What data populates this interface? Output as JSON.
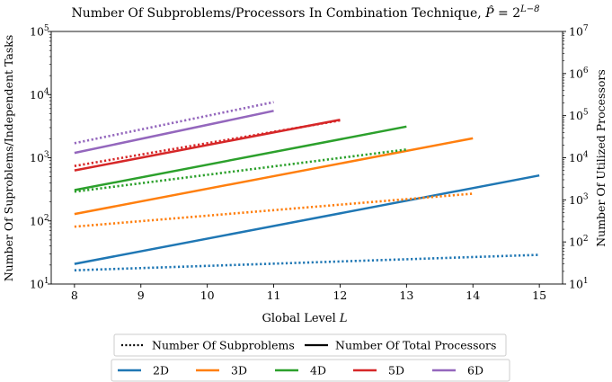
{
  "chart_data": {
    "type": "line",
    "title": "Number Of Subproblems/Processors In Combination Technique, P̂ = 2^{L−8}",
    "title_main": "Number Of Subproblems/Processors In Combination Technique, ",
    "title_sym": "P̂",
    "title_eq": " = 2",
    "title_exp": "L−8",
    "xlabel": "Global Level",
    "xlabel_var": "L",
    "ylabel_left": "Number Of Suproblems/Independent Tasks",
    "ylabel_right": "Number Of Utilized Processors",
    "xlim": [
      7.65,
      15.35
    ],
    "xticks": [
      "8",
      "9",
      "10",
      "11",
      "12",
      "13",
      "14",
      "15"
    ],
    "ylim_left": [
      10,
      100000
    ],
    "yscale_left": "log",
    "yticks_left": [
      {
        "base": "10",
        "exp": "1"
      },
      {
        "base": "10",
        "exp": "2"
      },
      {
        "base": "10",
        "exp": "3"
      },
      {
        "base": "10",
        "exp": "4"
      },
      {
        "base": "10",
        "exp": "5"
      }
    ],
    "ylim_right": [
      10,
      10000000
    ],
    "yscale_right": "log",
    "yticks_right": [
      {
        "base": "10",
        "exp": "1"
      },
      {
        "base": "10",
        "exp": "2"
      },
      {
        "base": "10",
        "exp": "3"
      },
      {
        "base": "10",
        "exp": "4"
      },
      {
        "base": "10",
        "exp": "5"
      },
      {
        "base": "10",
        "exp": "6"
      },
      {
        "base": "10",
        "exp": "7"
      }
    ],
    "grid": false,
    "legend_style": {
      "location": "bottom",
      "items": [
        {
          "label": "Number Of Subproblems",
          "dash": "dotted"
        },
        {
          "label": "Number Of Total Processors",
          "dash": "solid"
        }
      ]
    },
    "legend_dims": {
      "location": "bottom",
      "items": [
        {
          "label": "2D",
          "color": "#1f77b4"
        },
        {
          "label": "3D",
          "color": "#ff7f0e"
        },
        {
          "label": "4D",
          "color": "#2ca02c"
        },
        {
          "label": "5D",
          "color": "#d62728"
        },
        {
          "label": "6D",
          "color": "#9467bd"
        }
      ]
    },
    "series": [
      {
        "dim": "2D",
        "color": "#1f77b4",
        "kind": "subproblems",
        "axis": "left",
        "x": [
          8,
          15
        ],
        "y": [
          16.5,
          29
        ]
      },
      {
        "dim": "2D",
        "color": "#1f77b4",
        "kind": "processors",
        "axis": "right",
        "x": [
          8,
          15
        ],
        "y": [
          30,
          3800
        ]
      },
      {
        "dim": "3D",
        "color": "#ff7f0e",
        "kind": "subproblems",
        "axis": "left",
        "x": [
          8,
          14
        ],
        "y": [
          81,
          270
        ]
      },
      {
        "dim": "3D",
        "color": "#ff7f0e",
        "kind": "processors",
        "axis": "right",
        "x": [
          8,
          14
        ],
        "y": [
          460,
          29000
        ]
      },
      {
        "dim": "4D",
        "color": "#2ca02c",
        "kind": "subproblems",
        "axis": "left",
        "x": [
          8,
          13
        ],
        "y": [
          290,
          1350
        ]
      },
      {
        "dim": "4D",
        "color": "#2ca02c",
        "kind": "processors",
        "axis": "right",
        "x": [
          8,
          13
        ],
        "y": [
          1700,
          55000
        ]
      },
      {
        "dim": "5D",
        "color": "#d62728",
        "kind": "subproblems",
        "axis": "left",
        "x": [
          8,
          12
        ],
        "y": [
          740,
          3900
        ]
      },
      {
        "dim": "5D",
        "color": "#d62728",
        "kind": "processors",
        "axis": "right",
        "x": [
          8,
          12
        ],
        "y": [
          5000,
          80000
        ]
      },
      {
        "dim": "6D",
        "color": "#9467bd",
        "kind": "subproblems",
        "axis": "left",
        "x": [
          8,
          11
        ],
        "y": [
          1700,
          7600
        ]
      },
      {
        "dim": "6D",
        "color": "#9467bd",
        "kind": "processors",
        "axis": "right",
        "x": [
          8,
          11
        ],
        "y": [
          13000,
          130000
        ]
      }
    ]
  }
}
